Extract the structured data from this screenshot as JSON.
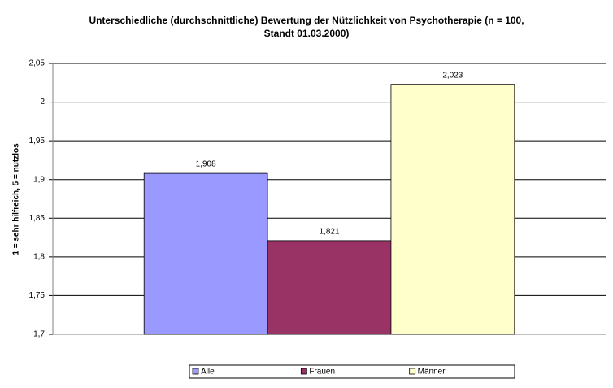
{
  "chart_data": {
    "type": "bar",
    "title": [
      "Unterschiedliche (durchschnittliche) Bewertung der Nützlichkeit von Psychotherapie (n = 100,",
      "Standt 01.03.2000)"
    ],
    "y_label": "1 = sehr hilfreich, 5 = nutzlos",
    "categories": [
      null
    ],
    "series": [
      {
        "name": "Alle",
        "color": "#9999ff",
        "values": [
          1.908
        ],
        "value_labels": [
          "1,908"
        ]
      },
      {
        "name": "Frauen",
        "color": "#993366",
        "values": [
          1.821
        ],
        "value_labels": [
          "1,821"
        ]
      },
      {
        "name": "Männer",
        "color": "#ffffcc",
        "values": [
          2.023
        ],
        "value_labels": [
          "2,023"
        ]
      }
    ],
    "ylim": [
      1.7,
      2.05
    ],
    "yticks": [
      {
        "value": 1.7,
        "label": "1,7"
      },
      {
        "value": 1.75,
        "label": "1,75"
      },
      {
        "value": 1.8,
        "label": "1,8"
      },
      {
        "value": 1.85,
        "label": "1,85"
      },
      {
        "value": 1.9,
        "label": "1,9"
      },
      {
        "value": 1.95,
        "label": "1,95"
      },
      2,
      {
        "value": 2.05,
        "label": "2,05"
      }
    ],
    "grid": true,
    "legend": "bottom"
  }
}
